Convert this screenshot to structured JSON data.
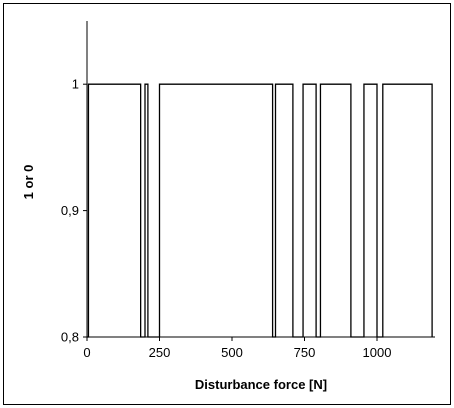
{
  "chart_data": {
    "type": "line",
    "title": "",
    "xlabel": "Disturbance force [N]",
    "ylabel": "1 or 0",
    "xlim": [
      0,
      1200
    ],
    "ylim": [
      0.8,
      1.05
    ],
    "x_ticks": [
      0,
      250,
      500,
      750,
      1000
    ],
    "x_tick_labels": [
      "0",
      "250",
      "500",
      "750",
      "1000"
    ],
    "y_ticks": [
      0.8,
      0.9,
      1.0
    ],
    "y_tick_labels": [
      "0,8",
      "0,9",
      "1"
    ],
    "grid": false,
    "legend": "none",
    "series_color": "#000000",
    "series": [
      {
        "x": [
          0,
          0,
          5,
          5,
          185,
          185,
          200,
          200,
          210,
          210,
          250,
          250,
          640,
          640,
          650,
          650,
          710,
          710,
          745,
          745,
          790,
          790,
          805,
          805,
          910,
          910,
          955,
          955,
          1000,
          1000,
          1020,
          1020,
          1190,
          1190
        ],
        "y": [
          0.8,
          0.8,
          0.8,
          1,
          1,
          0.8,
          0.8,
          1,
          1,
          0.8,
          0.8,
          1,
          1,
          0.8,
          0.8,
          1,
          1,
          0.8,
          0.8,
          1,
          1,
          0.8,
          0.8,
          1,
          1,
          0.8,
          0.8,
          1,
          1,
          0.8,
          0.8,
          1,
          1,
          0.8
        ]
      }
    ]
  }
}
